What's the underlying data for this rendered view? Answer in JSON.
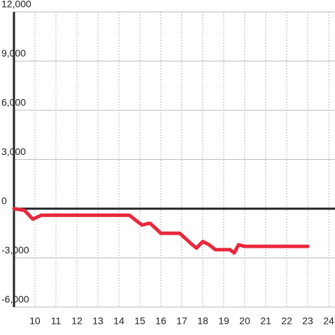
{
  "chart_data": {
    "type": "line",
    "x": [
      9.0,
      9.5,
      9.9,
      10.3,
      11.3,
      14.5,
      15.1,
      15.4,
      15.5,
      16.0,
      16.9,
      17.5,
      17.7,
      18.0,
      18.3,
      18.6,
      19.3,
      19.5,
      19.7,
      20.0,
      23.0
    ],
    "series": [
      {
        "color": "#e8283c",
        "values": [
          0,
          -100,
          -640,
          -400,
          -400,
          -400,
          -1000,
          -900,
          -900,
          -1500,
          -1500,
          -2200,
          -2400,
          -2000,
          -2200,
          -2500,
          -2500,
          -2700,
          -2200,
          -2300,
          -2300
        ]
      }
    ],
    "xlim": [
      9,
      24.3
    ],
    "xticks": [
      10,
      11,
      12,
      13,
      14,
      15,
      16,
      17,
      18,
      19,
      20,
      21,
      22,
      23,
      24
    ],
    "ylim": [
      -6000,
      12000
    ],
    "yticks": [
      {
        "value": -6000,
        "label": "-6,000"
      },
      {
        "value": -3000,
        "label": "-3,000"
      },
      0,
      {
        "value": 3000,
        "label": "3,000"
      },
      {
        "value": 6000,
        "label": "6,000"
      },
      {
        "value": 9000,
        "label": "9,000"
      },
      {
        "value": 12000,
        "label": "12,000"
      }
    ],
    "grid": true
  }
}
